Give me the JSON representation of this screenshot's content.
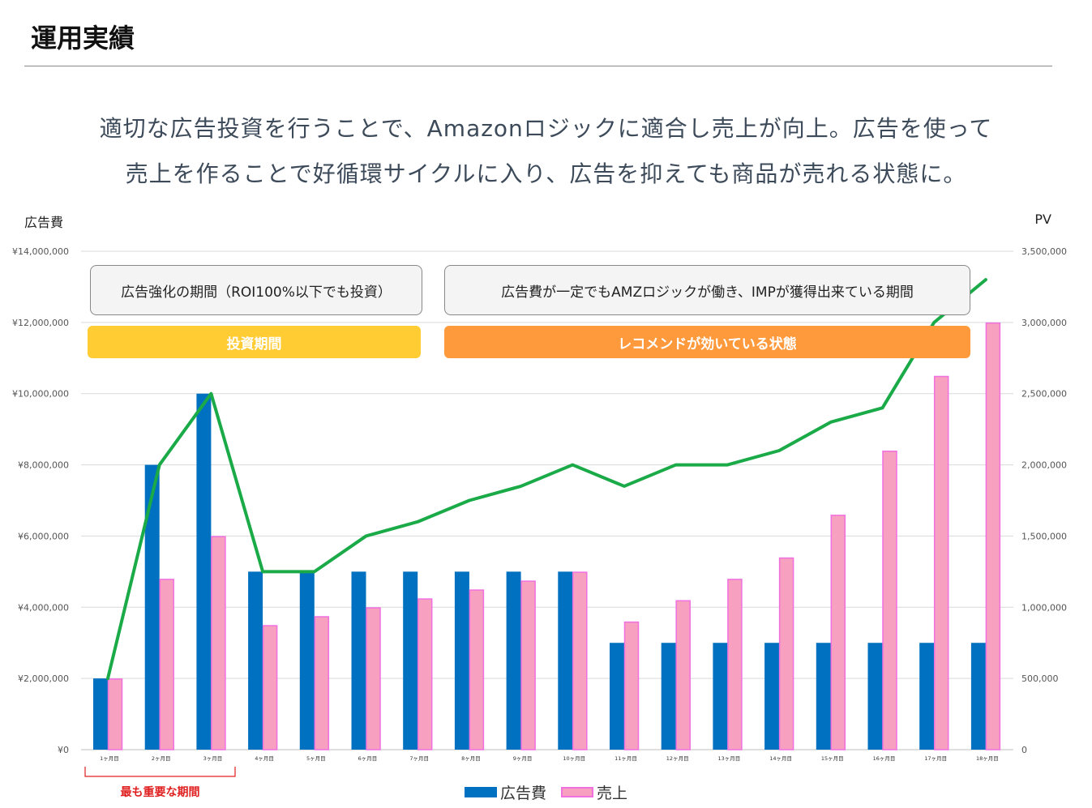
{
  "page": {
    "title": "運用実績",
    "headline_line1": "適切な広告投資を行うことで、Amazonロジックに適合し売上が向上。広告を使って",
    "headline_line2": "売上を作ることで好循環サイクルに入り、広告を抑えても商品が売れる状態に。"
  },
  "annotations": {
    "box_left": "広告強化の期間（ROI100%以下でも投資）",
    "box_right": "広告費が一定でもAMZロジックが働き、IMPが獲得出来ている期間",
    "phase_left": "投資期間",
    "phase_right": "レコメンドが効いている状態",
    "bracket_label": "最も重要な期間"
  },
  "colors": {
    "ad_cost": "#0070c0",
    "sales_fill": "#f8a0c0",
    "sales_border": "#f070e0",
    "pv_line": "#1aaa48",
    "phase_left": "#ffcc33",
    "phase_right": "#ff9a3c",
    "bracket": "#e02020"
  },
  "chart_data": {
    "type": "bar",
    "categories": [
      "1ヶ月目",
      "2ヶ月目",
      "3ヶ月目",
      "4ヶ月目",
      "5ヶ月目",
      "6ヶ月目",
      "7ヶ月目",
      "8ヶ月目",
      "9ヶ月目",
      "10ヶ月目",
      "11ヶ月目",
      "12ヶ月目",
      "13ヶ月目",
      "14ヶ月目",
      "15ヶ月目",
      "16ヶ月目",
      "17ヶ月目",
      "18ヶ月目"
    ],
    "ylabel": "広告費",
    "y2label": "PV",
    "ylim": [
      0,
      14000000
    ],
    "y2lim": [
      0,
      3500000
    ],
    "yticks": [
      "¥0",
      "¥2,000,000",
      "¥4,000,000",
      "¥6,000,000",
      "¥8,000,000",
      "¥10,000,000",
      "¥12,000,000",
      "¥14,000,000"
    ],
    "y2ticks": [
      "0",
      "500,000",
      "1,000,000",
      "1,500,000",
      "2,000,000",
      "2,500,000",
      "3,000,000",
      "3,500,000"
    ],
    "grid": true,
    "legend_position": "bottom",
    "series": [
      {
        "name": "広告費",
        "type": "bar",
        "axis": "left",
        "values": [
          2000000,
          8000000,
          10000000,
          5000000,
          5000000,
          5000000,
          5000000,
          5000000,
          5000000,
          5000000,
          3000000,
          3000000,
          3000000,
          3000000,
          3000000,
          3000000,
          3000000,
          3000000
        ]
      },
      {
        "name": "売上",
        "type": "bar",
        "axis": "left",
        "values": [
          2000000,
          4800000,
          6000000,
          3500000,
          3750000,
          4000000,
          4250000,
          4500000,
          4750000,
          5000000,
          3600000,
          4200000,
          4800000,
          5400000,
          6600000,
          8400000,
          10500000,
          12000000
        ]
      },
      {
        "type": "line",
        "axis": "right",
        "values": [
          500000,
          2000000,
          2500000,
          1250000,
          1250000,
          1500000,
          1600000,
          1750000,
          1850000,
          2000000,
          1850000,
          2000000,
          2000000,
          2100000,
          2300000,
          2400000,
          3000000,
          3300000
        ]
      }
    ]
  }
}
